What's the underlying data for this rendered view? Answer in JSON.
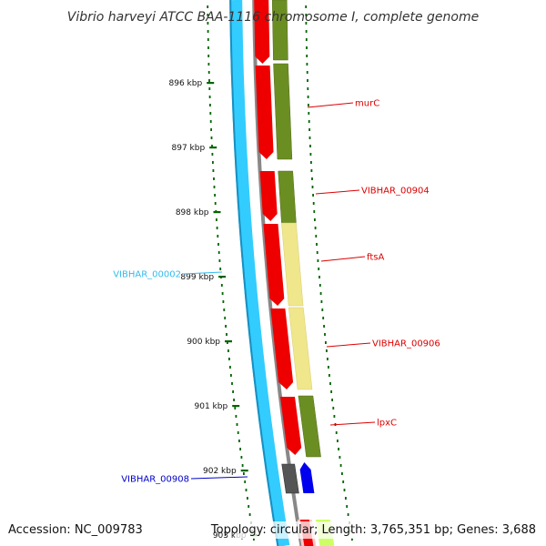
{
  "title": "Vibrio harveyi ATCC BAA-1116 chromosome I, complete genome",
  "footer": {
    "accession": "Accession: NC_009783",
    "summary": "Topology: circular; Length: 3,765,351 bp; Genes: 3,688"
  },
  "ticks": [
    "896 kbp",
    "897 kbp",
    "898 kbp",
    "899 kbp",
    "900 kbp",
    "901 kbp",
    "902 kbp",
    "903 kbp"
  ],
  "genes": [
    {
      "label": "murC",
      "color": "#dd0000"
    },
    {
      "label": "VIBHAR_00904",
      "color": "#dd0000"
    },
    {
      "label": "ftsA",
      "color": "#dd0000"
    },
    {
      "label": "VIBHAR_00906",
      "color": "#dd0000"
    },
    {
      "label": "lpxC",
      "color": "#dd0000"
    },
    {
      "label": "VIBHAR_00002",
      "color": "#33bbee"
    },
    {
      "label": "VIBHAR_00908",
      "color": "#0000cc"
    }
  ],
  "colors": {
    "backbone": "#33ccff",
    "backbone_edge": "#1a8fbf",
    "gray_ring": "#888888",
    "cds_forward": "#ee0000",
    "cog_green": "#6b8e23",
    "cog_yellow": "#f0e68c",
    "reverse_blue": "#0000ee",
    "dark_gray": "#555555",
    "tick": "#006400"
  }
}
